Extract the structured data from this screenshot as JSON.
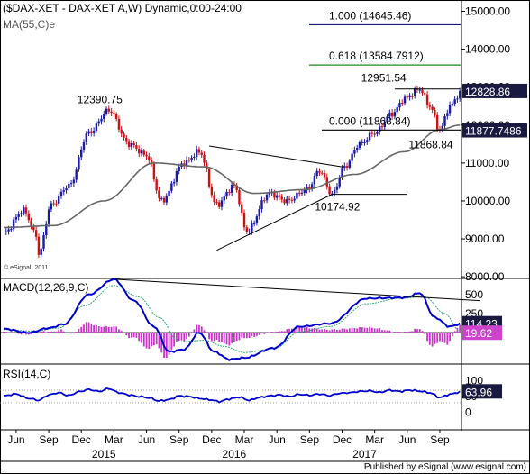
{
  "header": {
    "title": "($DAX-XET - DAX-XET A,W) Dynamic,0:00-24:00",
    "ma_label": "MA(55,C)e",
    "macd_label": "MACD(12,26,9,C)",
    "rsi_label": "RSI(14,C)",
    "credit": "© eSignal, 2011",
    "footer": "Published by eSignal (www.esignal.com)"
  },
  "colors": {
    "bull": "#1a1aa8",
    "bear": "#cc1111",
    "ma": "#666666",
    "fib": "#1a1a7a",
    "fib_green": "#1a8a1a",
    "macd_hist": "#cc33cc",
    "macd_line": "#0000cc",
    "signal_line": "#33aa77",
    "rsi_line": "#0000cc"
  },
  "chart_data": [
    {
      "type": "candlestick",
      "title": "($DAX-XET - DAX-XET A,W) Dynamic,0:00-24:00",
      "y_ticks": [
        8000,
        9000,
        10000,
        11000,
        12000,
        13000,
        14000,
        15000
      ],
      "y_tick_labels": [
        "8000.00",
        "9000.00",
        "10000.00",
        "11000.00",
        "12000.00",
        "13000.00",
        "14000.00",
        "15000.00"
      ],
      "ylim": [
        7980,
        15250
      ],
      "x_ticks": [
        "Jun",
        "Sep",
        "Dec",
        "Mar",
        "Jun",
        "Sep",
        "Dec",
        "Mar",
        "Jun",
        "Sep",
        "Dec",
        "Mar",
        "Jun",
        "Sep"
      ],
      "x_tick_weeks": [
        5,
        18,
        31,
        44,
        57,
        70,
        83,
        96,
        109,
        122,
        135,
        148,
        161,
        174
      ],
      "year_labels": [
        {
          "label": "2015",
          "week": 40
        },
        {
          "label": "2016",
          "week": 92
        },
        {
          "label": "2017",
          "week": 144
        }
      ],
      "anchors": [
        [
          0,
          9150
        ],
        [
          8,
          9750
        ],
        [
          13,
          9100
        ],
        [
          14,
          8600
        ],
        [
          19,
          9900
        ],
        [
          26,
          10400
        ],
        [
          34,
          11800
        ],
        [
          42,
          12390.75
        ],
        [
          50,
          11500
        ],
        [
          57,
          11200
        ],
        [
          63,
          10000
        ],
        [
          72,
          11000
        ],
        [
          78,
          11300
        ],
        [
          85,
          9900
        ],
        [
          92,
          10400
        ],
        [
          97,
          9200
        ],
        [
          106,
          10200
        ],
        [
          113,
          10000
        ],
        [
          121,
          10300
        ],
        [
          126,
          10800
        ],
        [
          131,
          10174.92
        ],
        [
          136,
          10900
        ],
        [
          142,
          11500
        ],
        [
          148,
          11800
        ],
        [
          155,
          12300
        ],
        [
          160,
          12700
        ],
        [
          166,
          12951.54
        ],
        [
          170,
          12500
        ],
        [
          174,
          11868.84
        ],
        [
          178,
          12500
        ],
        [
          182,
          12828.86
        ]
      ],
      "ma": {
        "name": "MA(55,C)e",
        "anchors": [
          [
            0,
            9300
          ],
          [
            20,
            9350
          ],
          [
            40,
            10000
          ],
          [
            60,
            11000
          ],
          [
            80,
            10900
          ],
          [
            100,
            10200
          ],
          [
            120,
            10300
          ],
          [
            140,
            10700
          ],
          [
            160,
            11300
          ],
          [
            174,
            11877.7486
          ],
          [
            182,
            12000
          ]
        ]
      },
      "annotations": [
        {
          "text": "12390.75",
          "week": 42,
          "price": 12390.75
        },
        {
          "text": "12951.54",
          "week": 166,
          "price": 12951.54
        },
        {
          "text": "10174.92",
          "week": 131,
          "price": 10174.92
        },
        {
          "text": "11868.84",
          "week": 174,
          "price": 11868.84
        }
      ],
      "fib_levels": [
        {
          "label": "1.000 (14645.46)",
          "price": 14645.46
        },
        {
          "label": "0.618 (13584.7912)",
          "price": 13584.7912
        },
        {
          "label": "0.000 (11868.84)",
          "price": 11868.84
        }
      ],
      "last_price_label": "12828.86",
      "ma_value_label": "11877.7486",
      "trendlines": [
        {
          "from": [
            82,
            11450
          ],
          "to": [
            135,
            10900
          ]
        },
        {
          "from": [
            85,
            8700
          ],
          "to": [
            131,
            10174.92
          ]
        },
        {
          "from": [
            131,
            10174.92
          ],
          "to": [
            161,
            10174.92
          ]
        },
        {
          "from": [
            156,
            12951.54
          ],
          "to": [
            182,
            12951.54
          ]
        }
      ]
    },
    {
      "type": "line",
      "title": "MACD(12,26,9,C)",
      "y_ticks": [
        0,
        250,
        500
      ],
      "y_tick_labels": [
        "0",
        "250",
        "500"
      ],
      "ylim": [
        -400,
        700
      ],
      "macd_anchors": [
        [
          0,
          50
        ],
        [
          10,
          0
        ],
        [
          18,
          60
        ],
        [
          24,
          110
        ],
        [
          34,
          500
        ],
        [
          44,
          700
        ],
        [
          52,
          420
        ],
        [
          60,
          80
        ],
        [
          66,
          -250
        ],
        [
          72,
          -220
        ],
        [
          78,
          0
        ],
        [
          84,
          -250
        ],
        [
          90,
          -350
        ],
        [
          96,
          -330
        ],
        [
          108,
          -200
        ],
        [
          118,
          80
        ],
        [
          130,
          120
        ],
        [
          145,
          450
        ],
        [
          160,
          460
        ],
        [
          166,
          520
        ],
        [
          172,
          200
        ],
        [
          178,
          80
        ],
        [
          182,
          114.23
        ]
      ],
      "signal_anchors": [
        [
          0,
          40
        ],
        [
          12,
          20
        ],
        [
          22,
          60
        ],
        [
          32,
          350
        ],
        [
          44,
          620
        ],
        [
          54,
          470
        ],
        [
          62,
          200
        ],
        [
          70,
          -120
        ],
        [
          80,
          -100
        ],
        [
          88,
          -180
        ],
        [
          96,
          -260
        ],
        [
          108,
          -210
        ],
        [
          118,
          10
        ],
        [
          130,
          80
        ],
        [
          145,
          380
        ],
        [
          158,
          450
        ],
        [
          168,
          470
        ],
        [
          176,
          250
        ],
        [
          182,
          19.62
        ]
      ],
      "last_macd_label": "114.23",
      "last_signal_label": "19.62",
      "divergence_line": {
        "from": [
          45,
          700
        ],
        "to": [
          190,
          420
        ]
      }
    },
    {
      "type": "line",
      "title": "RSI(14,C)",
      "y_ticks": [
        0,
        50,
        100
      ],
      "y_tick_labels": [
        "0",
        "50",
        "100"
      ],
      "ylim": [
        -50,
        150
      ],
      "rsi_anchors": [
        [
          0,
          52
        ],
        [
          5,
          58
        ],
        [
          10,
          44
        ],
        [
          14,
          38
        ],
        [
          18,
          55
        ],
        [
          22,
          62
        ],
        [
          26,
          53
        ],
        [
          30,
          65
        ],
        [
          34,
          72
        ],
        [
          38,
          66
        ],
        [
          42,
          75
        ],
        [
          46,
          62
        ],
        [
          50,
          55
        ],
        [
          54,
          50
        ],
        [
          58,
          46
        ],
        [
          62,
          36
        ],
        [
          66,
          40
        ],
        [
          70,
          52
        ],
        [
          74,
          50
        ],
        [
          78,
          44
        ],
        [
          82,
          40
        ],
        [
          86,
          34
        ],
        [
          90,
          42
        ],
        [
          94,
          48
        ],
        [
          98,
          38
        ],
        [
          102,
          47
        ],
        [
          106,
          52
        ],
        [
          110,
          55
        ],
        [
          114,
          50
        ],
        [
          118,
          57
        ],
        [
          122,
          54
        ],
        [
          126,
          58
        ],
        [
          130,
          53
        ],
        [
          134,
          60
        ],
        [
          138,
          62
        ],
        [
          142,
          66
        ],
        [
          146,
          68
        ],
        [
          150,
          63
        ],
        [
          154,
          70
        ],
        [
          158,
          66
        ],
        [
          162,
          70
        ],
        [
          166,
          67
        ],
        [
          170,
          62
        ],
        [
          174,
          47
        ],
        [
          178,
          57
        ],
        [
          182,
          63.96
        ]
      ],
      "last_rsi_label": "63.96"
    }
  ]
}
